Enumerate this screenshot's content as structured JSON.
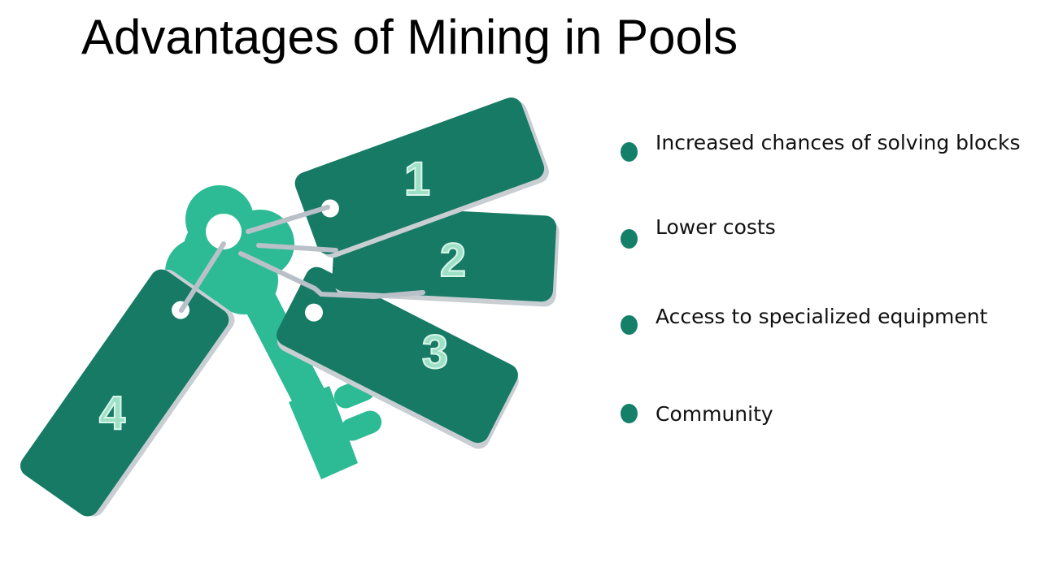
{
  "title": "Advantages of Mining in Pools",
  "tags": [
    {
      "number": "1"
    },
    {
      "number": "2"
    },
    {
      "number": "3"
    },
    {
      "number": "4"
    }
  ],
  "bullets": [
    {
      "text": "Increased chances of solving blocks"
    },
    {
      "text": "Lower costs"
    },
    {
      "text": "Access to specialized equipment"
    },
    {
      "text": "Community"
    }
  ],
  "colors": {
    "tag_fill": "#167a64",
    "key_fill": "#2dbb96",
    "bullet_dot": "#15806a"
  }
}
